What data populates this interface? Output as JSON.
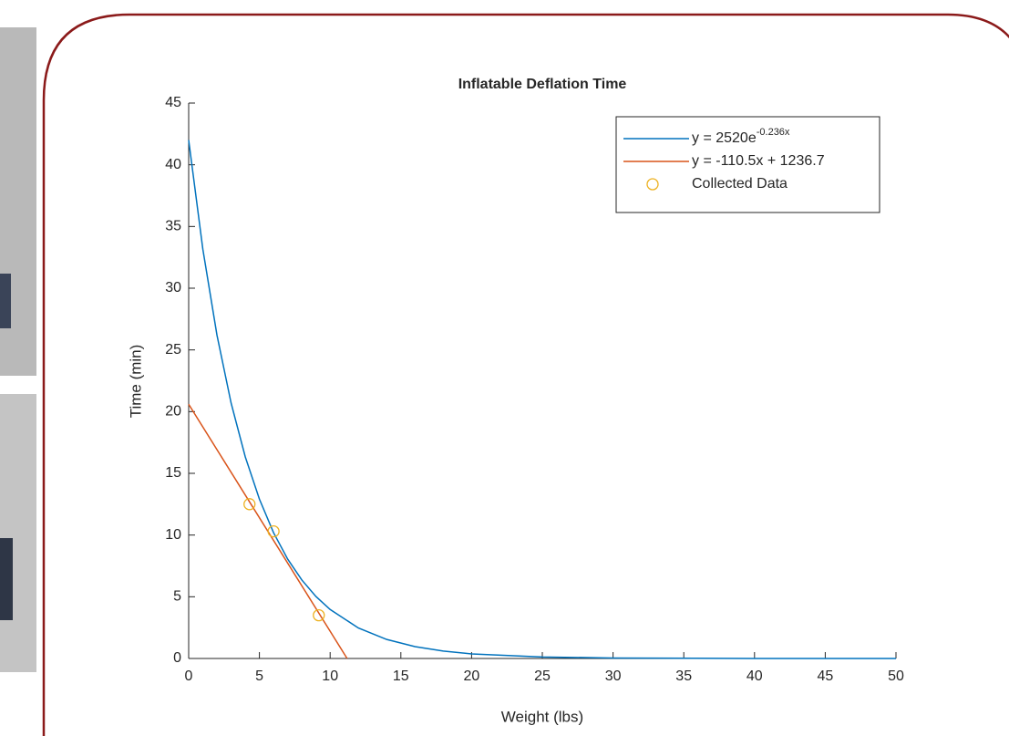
{
  "chart_data": {
    "type": "line",
    "title": "Inflatable Deflation Time",
    "xlabel": "Weight (lbs)",
    "ylabel": "Time (min)",
    "xlim": [
      0,
      50
    ],
    "xticks": [
      0,
      5,
      10,
      15,
      20,
      25,
      30,
      35,
      40,
      45,
      50
    ],
    "ylim": [
      0,
      45
    ],
    "yticks": [
      0,
      5,
      10,
      15,
      20,
      25,
      30,
      35,
      40,
      45
    ],
    "legend": "top-right",
    "series": [
      {
        "name": "y = 2520e",
        "name_exponent": "-0.236x",
        "color": "#0072bd",
        "mode": "line",
        "x": [
          0,
          1,
          2,
          3,
          4,
          5,
          6,
          7,
          8,
          9,
          10,
          12,
          14,
          16,
          18,
          20,
          25,
          30,
          40,
          50
        ],
        "values": [
          42,
          33.17,
          26.2,
          20.69,
          16.34,
          12.91,
          10.19,
          8.05,
          6.36,
          5.02,
          3.97,
          2.47,
          1.54,
          0.96,
          0.6,
          0.37,
          0.12,
          0.04,
          0,
          0
        ]
      },
      {
        "name": "y = -110.5x + 1236.7",
        "color": "#d95319",
        "mode": "line",
        "x": [
          0,
          11.2
        ],
        "values": [
          20.6,
          0
        ]
      },
      {
        "name": "Collected Data",
        "color": "#edb120",
        "mode": "markers",
        "x": [
          4.3,
          6,
          9.2
        ],
        "values": [
          12.5,
          10.3,
          3.5
        ]
      }
    ]
  }
}
